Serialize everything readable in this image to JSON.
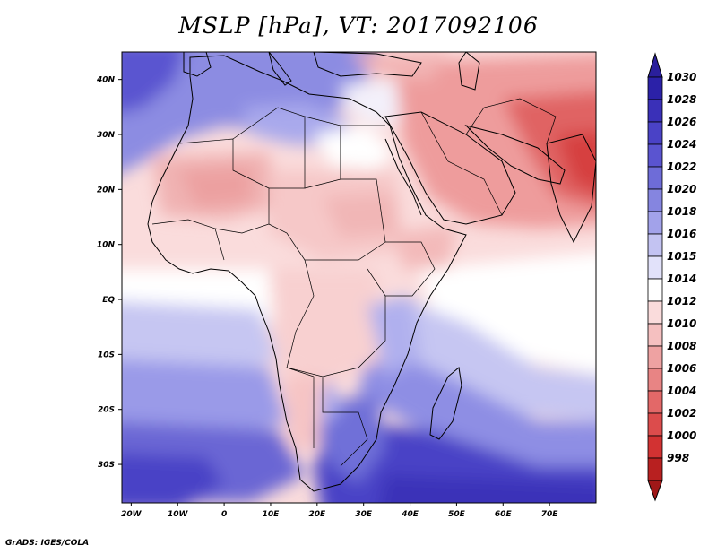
{
  "title": "MSLP [hPa], VT: 2017092106",
  "footer": "GrADS: IGES/COLA",
  "map": {
    "lon_range": [
      -22,
      80
    ],
    "lat_range": [
      -37,
      45
    ],
    "lon_ticks": [
      {
        "value": -20,
        "label": "20W"
      },
      {
        "value": -10,
        "label": "10W"
      },
      {
        "value": 0,
        "label": "0"
      },
      {
        "value": 10,
        "label": "10E"
      },
      {
        "value": 20,
        "label": "20E"
      },
      {
        "value": 30,
        "label": "30E"
      },
      {
        "value": 40,
        "label": "40E"
      },
      {
        "value": 50,
        "label": "50E"
      },
      {
        "value": 60,
        "label": "60E"
      },
      {
        "value": 70,
        "label": "70E"
      }
    ],
    "lat_ticks": [
      {
        "value": 40,
        "label": "40N"
      },
      {
        "value": 30,
        "label": "30N"
      },
      {
        "value": 20,
        "label": "20N"
      },
      {
        "value": 10,
        "label": "10N"
      },
      {
        "value": 0,
        "label": "EQ"
      },
      {
        "value": -10,
        "label": "10S"
      },
      {
        "value": -20,
        "label": "20S"
      },
      {
        "value": -30,
        "label": "30S"
      }
    ]
  },
  "colorbar": {
    "levels": [
      {
        "label": "1030",
        "color": "#2b21a8"
      },
      {
        "label": "1028",
        "color": "#3a30b8"
      },
      {
        "label": "1026",
        "color": "#4a42c6"
      },
      {
        "label": "1024",
        "color": "#5a54d0"
      },
      {
        "label": "1022",
        "color": "#6e6cd8"
      },
      {
        "label": "1020",
        "color": "#8585e0"
      },
      {
        "label": "1018",
        "color": "#a2a2ea"
      },
      {
        "label": "1016",
        "color": "#c3c3f2"
      },
      {
        "label": "1015",
        "color": "#e2e2fa"
      },
      {
        "label": "1014",
        "color": "#ffffff"
      },
      {
        "label": "1012",
        "color": "#fadcdc"
      },
      {
        "label": "1010",
        "color": "#f5c0c0"
      },
      {
        "label": "1008",
        "color": "#eea2a2"
      },
      {
        "label": "1006",
        "color": "#e88484"
      },
      {
        "label": "1004",
        "color": "#e36868"
      },
      {
        "label": "1002",
        "color": "#dc4c4c"
      },
      {
        "label": "1000",
        "color": "#d23232"
      },
      {
        "label": "998",
        "color": "#b82020"
      }
    ],
    "top_color": "#2a1f9c",
    "bottom_color": "#a01818"
  }
}
